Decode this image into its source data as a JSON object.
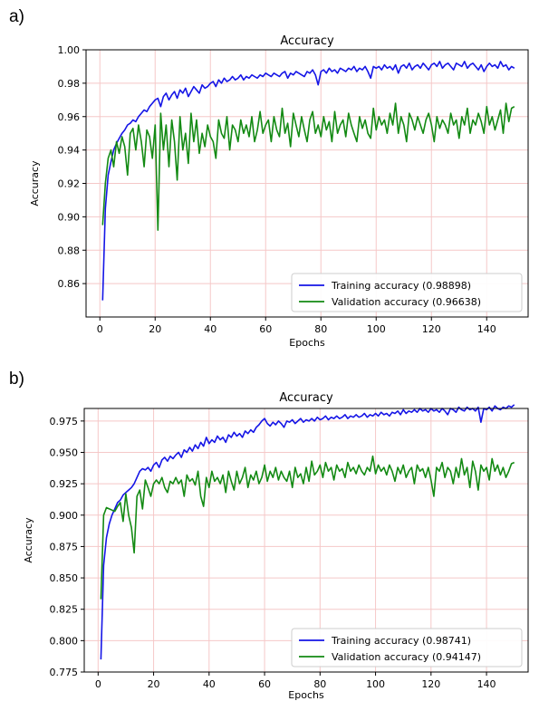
{
  "panels": [
    {
      "label": "a)"
    },
    {
      "label": "b)"
    }
  ],
  "chart_data": [
    {
      "type": "line",
      "title": "Accuracy",
      "xlabel": "Epochs",
      "ylabel": "Accuracy",
      "xlim": [
        -5,
        155
      ],
      "ylim": [
        0.84,
        1.0
      ],
      "xticks": [
        "0",
        "20",
        "40",
        "60",
        "80",
        "100",
        "120",
        "140"
      ],
      "yticks": [
        "0.86",
        "0.88",
        "0.90",
        "0.92",
        "0.94",
        "0.96",
        "0.98",
        "1.00"
      ],
      "grid": true,
      "grid_color": "#f5c8c8",
      "legend_position": "lower-right",
      "x": [
        1,
        2,
        3,
        4,
        5,
        6,
        7,
        8,
        9,
        10,
        11,
        12,
        13,
        14,
        15,
        16,
        17,
        18,
        19,
        20,
        21,
        22,
        23,
        24,
        25,
        26,
        27,
        28,
        29,
        30,
        31,
        32,
        33,
        34,
        35,
        36,
        37,
        38,
        39,
        40,
        41,
        42,
        43,
        44,
        45,
        46,
        47,
        48,
        49,
        50,
        51,
        52,
        53,
        54,
        55,
        56,
        57,
        58,
        59,
        60,
        61,
        62,
        63,
        64,
        65,
        66,
        67,
        68,
        69,
        70,
        71,
        72,
        73,
        74,
        75,
        76,
        77,
        78,
        79,
        80,
        81,
        82,
        83,
        84,
        85,
        86,
        87,
        88,
        89,
        90,
        91,
        92,
        93,
        94,
        95,
        96,
        97,
        98,
        99,
        100,
        101,
        102,
        103,
        104,
        105,
        106,
        107,
        108,
        109,
        110,
        111,
        112,
        113,
        114,
        115,
        116,
        117,
        118,
        119,
        120,
        121,
        122,
        123,
        124,
        125,
        126,
        127,
        128,
        129,
        130,
        131,
        132,
        133,
        134,
        135,
        136,
        137,
        138,
        139,
        140,
        141,
        142,
        143,
        144,
        145,
        146,
        147,
        148,
        149,
        150
      ],
      "series": [
        {
          "name": "Training accuracy (0.98898)",
          "color": "#1515e6",
          "values": [
            0.85,
            0.905,
            0.925,
            0.933,
            0.94,
            0.944,
            0.947,
            0.95,
            0.952,
            0.955,
            0.956,
            0.958,
            0.957,
            0.96,
            0.962,
            0.964,
            0.963,
            0.966,
            0.968,
            0.97,
            0.971,
            0.966,
            0.972,
            0.974,
            0.97,
            0.973,
            0.975,
            0.971,
            0.976,
            0.974,
            0.977,
            0.972,
            0.975,
            0.978,
            0.976,
            0.974,
            0.979,
            0.977,
            0.978,
            0.98,
            0.981,
            0.978,
            0.982,
            0.98,
            0.983,
            0.981,
            0.982,
            0.984,
            0.982,
            0.983,
            0.985,
            0.982,
            0.984,
            0.983,
            0.985,
            0.984,
            0.983,
            0.985,
            0.984,
            0.986,
            0.985,
            0.984,
            0.986,
            0.985,
            0.984,
            0.986,
            0.987,
            0.983,
            0.986,
            0.985,
            0.987,
            0.986,
            0.985,
            0.984,
            0.987,
            0.986,
            0.988,
            0.985,
            0.979,
            0.987,
            0.988,
            0.986,
            0.989,
            0.987,
            0.988,
            0.986,
            0.989,
            0.988,
            0.987,
            0.989,
            0.988,
            0.99,
            0.987,
            0.989,
            0.988,
            0.99,
            0.987,
            0.983,
            0.99,
            0.989,
            0.99,
            0.988,
            0.991,
            0.989,
            0.99,
            0.988,
            0.991,
            0.986,
            0.99,
            0.991,
            0.989,
            0.992,
            0.988,
            0.99,
            0.991,
            0.989,
            0.992,
            0.99,
            0.988,
            0.991,
            0.992,
            0.99,
            0.993,
            0.989,
            0.991,
            0.992,
            0.99,
            0.988,
            0.992,
            0.991,
            0.99,
            0.993,
            0.989,
            0.991,
            0.992,
            0.99,
            0.988,
            0.991,
            0.987,
            0.99,
            0.992,
            0.99,
            0.991,
            0.989,
            0.993,
            0.99,
            0.991,
            0.988,
            0.99,
            0.989
          ]
        },
        {
          "name": "Validation accuracy (0.96638)",
          "color": "#138a13",
          "values": [
            0.895,
            0.92,
            0.935,
            0.94,
            0.93,
            0.945,
            0.938,
            0.948,
            0.942,
            0.925,
            0.95,
            0.953,
            0.94,
            0.955,
            0.945,
            0.93,
            0.952,
            0.948,
            0.935,
            0.955,
            0.892,
            0.962,
            0.94,
            0.955,
            0.93,
            0.958,
            0.945,
            0.922,
            0.96,
            0.94,
            0.95,
            0.932,
            0.962,
            0.945,
            0.958,
            0.938,
            0.95,
            0.942,
            0.955,
            0.948,
            0.945,
            0.935,
            0.958,
            0.95,
            0.947,
            0.96,
            0.94,
            0.955,
            0.952,
            0.945,
            0.958,
            0.95,
            0.955,
            0.948,
            0.96,
            0.945,
            0.952,
            0.963,
            0.95,
            0.955,
            0.958,
            0.945,
            0.96,
            0.952,
            0.948,
            0.965,
            0.95,
            0.956,
            0.942,
            0.962,
            0.955,
            0.948,
            0.96,
            0.952,
            0.945,
            0.958,
            0.963,
            0.95,
            0.955,
            0.948,
            0.96,
            0.952,
            0.957,
            0.945,
            0.963,
            0.95,
            0.955,
            0.958,
            0.948,
            0.962,
            0.955,
            0.95,
            0.945,
            0.96,
            0.953,
            0.958,
            0.95,
            0.947,
            0.965,
            0.952,
            0.96,
            0.955,
            0.958,
            0.95,
            0.962,
            0.955,
            0.968,
            0.95,
            0.96,
            0.955,
            0.945,
            0.962,
            0.958,
            0.952,
            0.96,
            0.955,
            0.95,
            0.958,
            0.962,
            0.955,
            0.945,
            0.96,
            0.953,
            0.958,
            0.955,
            0.95,
            0.962,
            0.955,
            0.958,
            0.947,
            0.96,
            0.955,
            0.965,
            0.95,
            0.958,
            0.955,
            0.962,
            0.957,
            0.95,
            0.966,
            0.955,
            0.96,
            0.952,
            0.958,
            0.964,
            0.95,
            0.968,
            0.957,
            0.965,
            0.966
          ]
        }
      ]
    },
    {
      "type": "line",
      "title": "Accuracy",
      "xlabel": "Epochs",
      "ylabel": "Accuracy",
      "xlim": [
        -5,
        155
      ],
      "ylim": [
        0.775,
        0.985
      ],
      "xticks": [
        "0",
        "20",
        "40",
        "60",
        "80",
        "100",
        "120",
        "140"
      ],
      "yticks": [
        "0.775",
        "0.800",
        "0.825",
        "0.850",
        "0.875",
        "0.900",
        "0.925",
        "0.950",
        "0.975"
      ],
      "grid": true,
      "grid_color": "#f5c8c8",
      "legend_position": "lower-right",
      "x": [
        1,
        2,
        3,
        4,
        5,
        6,
        7,
        8,
        9,
        10,
        11,
        12,
        13,
        14,
        15,
        16,
        17,
        18,
        19,
        20,
        21,
        22,
        23,
        24,
        25,
        26,
        27,
        28,
        29,
        30,
        31,
        32,
        33,
        34,
        35,
        36,
        37,
        38,
        39,
        40,
        41,
        42,
        43,
        44,
        45,
        46,
        47,
        48,
        49,
        50,
        51,
        52,
        53,
        54,
        55,
        56,
        57,
        58,
        59,
        60,
        61,
        62,
        63,
        64,
        65,
        66,
        67,
        68,
        69,
        70,
        71,
        72,
        73,
        74,
        75,
        76,
        77,
        78,
        79,
        80,
        81,
        82,
        83,
        84,
        85,
        86,
        87,
        88,
        89,
        90,
        91,
        92,
        93,
        94,
        95,
        96,
        97,
        98,
        99,
        100,
        101,
        102,
        103,
        104,
        105,
        106,
        107,
        108,
        109,
        110,
        111,
        112,
        113,
        114,
        115,
        116,
        117,
        118,
        119,
        120,
        121,
        122,
        123,
        124,
        125,
        126,
        127,
        128,
        129,
        130,
        131,
        132,
        133,
        134,
        135,
        136,
        137,
        138,
        139,
        140,
        141,
        142,
        143,
        144,
        145,
        146,
        147,
        148,
        149,
        150
      ],
      "series": [
        {
          "name": "Training accuracy (0.98741)",
          "color": "#1515e6",
          "values": [
            0.785,
            0.86,
            0.882,
            0.893,
            0.9,
            0.905,
            0.91,
            0.912,
            0.916,
            0.918,
            0.92,
            0.922,
            0.925,
            0.93,
            0.935,
            0.937,
            0.936,
            0.938,
            0.935,
            0.94,
            0.942,
            0.938,
            0.944,
            0.946,
            0.943,
            0.947,
            0.945,
            0.948,
            0.95,
            0.946,
            0.952,
            0.95,
            0.954,
            0.951,
            0.956,
            0.953,
            0.958,
            0.955,
            0.962,
            0.957,
            0.96,
            0.958,
            0.963,
            0.96,
            0.962,
            0.958,
            0.964,
            0.962,
            0.966,
            0.963,
            0.965,
            0.962,
            0.967,
            0.965,
            0.968,
            0.966,
            0.97,
            0.972,
            0.975,
            0.977,
            0.973,
            0.971,
            0.974,
            0.972,
            0.975,
            0.973,
            0.97,
            0.975,
            0.974,
            0.976,
            0.973,
            0.975,
            0.977,
            0.974,
            0.976,
            0.975,
            0.977,
            0.975,
            0.978,
            0.976,
            0.977,
            0.979,
            0.976,
            0.978,
            0.977,
            0.979,
            0.977,
            0.978,
            0.98,
            0.977,
            0.979,
            0.978,
            0.98,
            0.978,
            0.979,
            0.981,
            0.978,
            0.98,
            0.979,
            0.981,
            0.979,
            0.982,
            0.98,
            0.981,
            0.979,
            0.982,
            0.981,
            0.983,
            0.98,
            0.984,
            0.981,
            0.983,
            0.982,
            0.984,
            0.982,
            0.985,
            0.983,
            0.984,
            0.982,
            0.985,
            0.983,
            0.984,
            0.982,
            0.985,
            0.983,
            0.98,
            0.985,
            0.984,
            0.982,
            0.986,
            0.984,
            0.983,
            0.986,
            0.984,
            0.985,
            0.983,
            0.986,
            0.974,
            0.985,
            0.984,
            0.986,
            0.983,
            0.987,
            0.985,
            0.984,
            0.986,
            0.985,
            0.987,
            0.986,
            0.988
          ]
        },
        {
          "name": "Validation accuracy (0.94147)",
          "color": "#138a13",
          "values": [
            0.833,
            0.9,
            0.906,
            0.905,
            0.904,
            0.903,
            0.907,
            0.91,
            0.895,
            0.917,
            0.9,
            0.89,
            0.87,
            0.915,
            0.92,
            0.905,
            0.928,
            0.922,
            0.915,
            0.925,
            0.928,
            0.925,
            0.93,
            0.922,
            0.918,
            0.927,
            0.925,
            0.93,
            0.925,
            0.928,
            0.915,
            0.932,
            0.927,
            0.929,
            0.924,
            0.935,
            0.915,
            0.907,
            0.93,
            0.922,
            0.935,
            0.927,
            0.93,
            0.925,
            0.932,
            0.918,
            0.935,
            0.927,
            0.92,
            0.935,
            0.925,
            0.93,
            0.938,
            0.922,
            0.932,
            0.928,
            0.935,
            0.925,
            0.93,
            0.94,
            0.927,
            0.935,
            0.93,
            0.938,
            0.928,
            0.935,
            0.93,
            0.927,
            0.935,
            0.922,
            0.938,
            0.93,
            0.933,
            0.925,
            0.938,
            0.927,
            0.943,
            0.932,
            0.935,
            0.94,
            0.93,
            0.942,
            0.935,
            0.938,
            0.928,
            0.94,
            0.935,
            0.937,
            0.93,
            0.942,
            0.935,
            0.938,
            0.933,
            0.94,
            0.935,
            0.932,
            0.938,
            0.935,
            0.947,
            0.933,
            0.94,
            0.935,
            0.938,
            0.932,
            0.94,
            0.935,
            0.927,
            0.938,
            0.933,
            0.94,
            0.93,
            0.935,
            0.938,
            0.925,
            0.94,
            0.935,
            0.937,
            0.93,
            0.938,
            0.928,
            0.915,
            0.938,
            0.935,
            0.942,
            0.93,
            0.938,
            0.935,
            0.925,
            0.938,
            0.93,
            0.945,
            0.932,
            0.938,
            0.922,
            0.943,
            0.935,
            0.92,
            0.94,
            0.935,
            0.938,
            0.928,
            0.945,
            0.935,
            0.94,
            0.932,
            0.938,
            0.93,
            0.935,
            0.941,
            0.942
          ]
        }
      ]
    }
  ]
}
